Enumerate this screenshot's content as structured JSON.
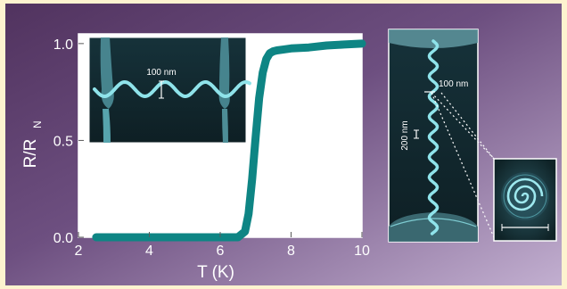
{
  "chart_data": {
    "type": "line",
    "title": "",
    "xlabel": "T (K)",
    "ylabel_main": "R/R",
    "ylabel_sub": "N",
    "xlim": [
      2,
      10
    ],
    "ylim": [
      0.0,
      1.05
    ],
    "xticks": [
      2,
      4,
      6,
      8,
      10
    ],
    "yticks": [
      0.0,
      0.5,
      1.0
    ],
    "xtick_labels": [
      "2",
      "4",
      "6",
      "8",
      "10"
    ],
    "ytick_labels": [
      "0.0",
      "0.5",
      "1.0"
    ],
    "grid": false,
    "series": [
      {
        "color": "#0e8584",
        "x": [
          2.5,
          3.0,
          4.0,
          5.0,
          6.0,
          6.5,
          6.7,
          6.8,
          6.9,
          7.0,
          7.1,
          7.2,
          7.3,
          7.4,
          7.5,
          7.6,
          7.8,
          8.0,
          8.5,
          9.0,
          9.5,
          10.0
        ],
        "y": [
          0.0,
          0.0,
          0.0,
          0.0,
          0.0,
          0.0,
          0.03,
          0.12,
          0.3,
          0.52,
          0.72,
          0.85,
          0.92,
          0.95,
          0.96,
          0.965,
          0.97,
          0.975,
          0.98,
          0.99,
          0.995,
          1.0
        ]
      }
    ]
  },
  "insets": {
    "left_scale": "100 nm",
    "right_scale": "100 nm",
    "right_vertical_scale": "200 nm"
  },
  "colors": {
    "page_border": "#fdf3cf",
    "background_dark": "#563863",
    "background_light": "#b8a2c5",
    "curve": "#0e8584",
    "sem_structure": "#8fe3ea"
  }
}
